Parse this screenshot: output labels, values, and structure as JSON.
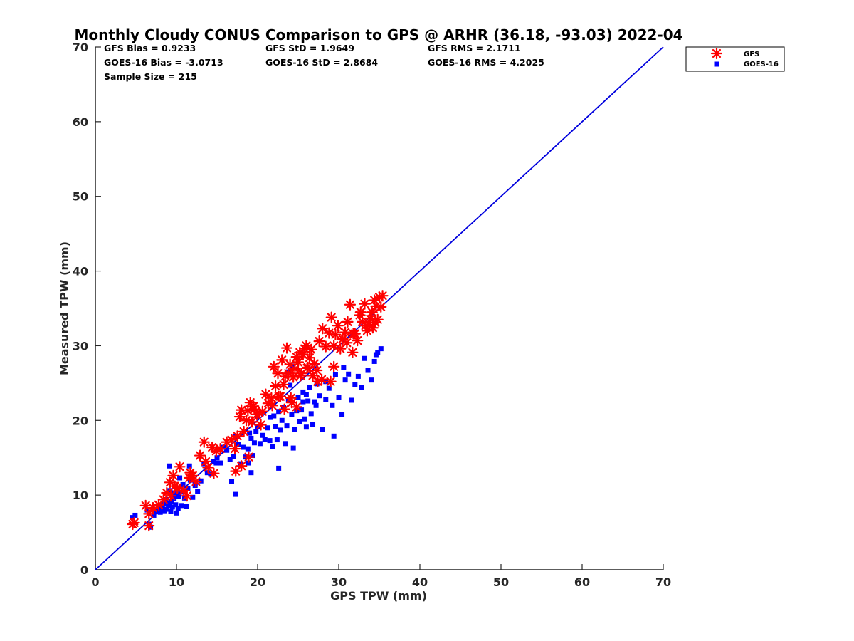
{
  "chart_data": {
    "type": "scatter",
    "title": "Monthly Cloudy CONUS Comparison to GPS @ ARHR (36.18, -93.03) 2022-04",
    "xlabel": "GPS TPW (mm)",
    "ylabel": "Measured TPW (mm)",
    "xlim": [
      0,
      70
    ],
    "ylim": [
      0,
      70
    ],
    "xticks": [
      "0",
      "10",
      "20",
      "30",
      "40",
      "50",
      "60",
      "70"
    ],
    "yticks": [
      "0",
      "10",
      "20",
      "30",
      "40",
      "50",
      "60",
      "70"
    ],
    "grid": false,
    "legend_position": "outside-top-right",
    "stats": [
      "GFS Bias = 0.9233",
      "GFS StD = 1.9649",
      "GFS RMS = 2.1711",
      "GOES-16 Bias = -3.0713",
      "GOES-16 StD = 2.8684",
      "GOES-16 RMS = 4.2025",
      "Sample Size = 215"
    ],
    "reference_line": {
      "x": [
        0,
        70
      ],
      "y": [
        0,
        70
      ],
      "color": "#0000dd"
    },
    "series": [
      {
        "name": "GFS",
        "marker": "asterisk",
        "color": "#ff0000",
        "x": [
          4.6,
          4.8,
          6.2,
          6.6,
          7.1,
          7.8,
          8.4,
          8.8,
          9.2,
          9.6,
          9.8,
          10.1,
          10.4,
          10.9,
          11.3,
          11.6,
          12.0,
          12.4,
          12.9,
          13.4,
          13.9,
          14.4,
          14.9,
          15.4,
          16.2,
          16.8,
          17.2,
          17.5,
          17.8,
          18.0,
          18.3,
          18.6,
          18.8,
          19.1,
          19.3,
          19.6,
          19.9,
          20.2,
          20.6,
          21.0,
          21.3,
          21.7,
          22.0,
          22.2,
          22.5,
          22.8,
          23.0,
          23.2,
          23.4,
          23.6,
          23.8,
          24.0,
          24.2,
          24.4,
          24.6,
          24.8,
          25.0,
          25.2,
          25.4,
          25.6,
          25.8,
          26.0,
          26.2,
          26.4,
          26.6,
          26.8,
          27.0,
          27.3,
          27.6,
          28.0,
          28.4,
          28.8,
          29.1,
          29.4,
          29.6,
          29.9,
          30.2,
          30.5,
          30.8,
          31.1,
          31.4,
          31.7,
          32.0,
          32.3,
          32.6,
          32.9,
          33.2,
          33.5,
          33.8,
          34.1,
          34.4,
          34.6,
          34.8,
          35.0,
          35.2,
          35.4,
          34.5,
          34.2,
          33.9,
          33.3,
          32.7,
          31.8,
          31.0,
          29.4,
          27.4,
          26.1,
          25.3,
          24.1,
          22.6,
          18.9,
          18.0,
          19.5,
          17.3,
          14.6,
          13.6,
          11.7,
          10.1,
          9.3,
          6.6,
          24.8,
          23.3,
          20.4,
          21.8,
          27.9,
          29.0
        ],
        "y": [
          6.1,
          6.3,
          8.6,
          5.9,
          8.3,
          8.7,
          9.4,
          10.3,
          11.7,
          12.6,
          11.2,
          10.9,
          13.8,
          10.6,
          9.9,
          12.3,
          12.6,
          11.8,
          15.3,
          17.1,
          13.7,
          16.4,
          15.9,
          16.2,
          17.1,
          17.4,
          16.2,
          17.9,
          20.5,
          21.4,
          18.5,
          20.0,
          21.3,
          22.4,
          19.8,
          21.5,
          20.8,
          21.0,
          21.2,
          23.5,
          22.3,
          23.0,
          27.2,
          24.6,
          26.3,
          23.2,
          28.1,
          24.8,
          25.9,
          29.7,
          26.3,
          27.5,
          22.4,
          25.8,
          26.9,
          28.5,
          27.8,
          29.1,
          26.3,
          28.8,
          29.6,
          30.0,
          27.1,
          28.4,
          29.5,
          26.0,
          27.6,
          26.7,
          30.6,
          32.3,
          29.9,
          31.7,
          33.8,
          30.0,
          31.5,
          32.7,
          29.6,
          30.9,
          31.8,
          33.2,
          35.5,
          29.1,
          31.6,
          30.7,
          34.1,
          33.2,
          35.6,
          32.0,
          32.8,
          34.5,
          36.1,
          35.3,
          33.5,
          36.5,
          35.2,
          36.7,
          33.1,
          32.4,
          33.6,
          32.7,
          34.5,
          31.6,
          30.4,
          27.2,
          25.2,
          27.0,
          26.0,
          23.0,
          23.2,
          15.1,
          13.9,
          21.9,
          13.2,
          12.9,
          14.5,
          13.0,
          11.0,
          9.9,
          7.5,
          21.8,
          21.5,
          19.4,
          22.0,
          25.5,
          25.2
        ]
      },
      {
        "name": "GOES-16",
        "marker": "square",
        "color": "#0000ff",
        "x": [
          4.6,
          4.9,
          6.4,
          6.8,
          7.2,
          7.5,
          7.8,
          8.0,
          8.2,
          8.4,
          8.5,
          8.7,
          8.8,
          9.0,
          9.1,
          9.2,
          9.3,
          9.4,
          9.5,
          9.6,
          9.7,
          9.8,
          9.9,
          10.0,
          10.1,
          10.2,
          10.3,
          10.4,
          10.5,
          10.6,
          10.8,
          11.0,
          11.2,
          11.4,
          11.7,
          12.0,
          12.3,
          12.6,
          13.0,
          13.4,
          13.8,
          14.2,
          14.6,
          15.0,
          15.4,
          15.8,
          16.2,
          16.6,
          17.0,
          17.3,
          17.6,
          17.9,
          18.2,
          18.5,
          18.8,
          19.0,
          19.2,
          19.4,
          19.6,
          19.8,
          20.0,
          20.3,
          20.6,
          20.9,
          21.2,
          21.5,
          21.8,
          22.0,
          22.2,
          22.4,
          22.6,
          22.8,
          23.0,
          23.2,
          23.4,
          23.6,
          23.8,
          24.0,
          24.2,
          24.4,
          24.6,
          24.8,
          25.0,
          25.2,
          25.4,
          25.6,
          25.8,
          26.0,
          26.2,
          26.4,
          26.6,
          26.8,
          27.0,
          27.3,
          27.6,
          28.0,
          28.4,
          28.8,
          29.2,
          29.6,
          30.0,
          30.4,
          30.8,
          31.2,
          31.6,
          32.0,
          32.4,
          32.8,
          33.2,
          33.6,
          34.0,
          34.4,
          34.8,
          35.2,
          29.4,
          24.2,
          22.6,
          18.9,
          17.3,
          16.8,
          19.2,
          23.8,
          25.6,
          27.2,
          20.0,
          26.0,
          30.6,
          21.6,
          28.4,
          34.6,
          9.1,
          6.6,
          10.9,
          14.9,
          12.3,
          11.6
        ],
        "y": [
          7.0,
          7.3,
          8.0,
          5.7,
          7.3,
          7.8,
          8.3,
          7.7,
          8.5,
          8.9,
          7.9,
          9.4,
          8.1,
          8.6,
          13.9,
          10.6,
          7.8,
          9.1,
          8.4,
          10.3,
          9.5,
          11.2,
          8.7,
          7.6,
          10.0,
          8.2,
          9.8,
          12.3,
          10.4,
          8.6,
          11.4,
          9.6,
          8.5,
          10.9,
          12.0,
          9.7,
          11.3,
          10.5,
          11.9,
          14.2,
          13.0,
          12.8,
          14.5,
          15.0,
          14.3,
          16.4,
          16.0,
          14.8,
          15.2,
          17.8,
          16.8,
          14.2,
          16.4,
          15.1,
          16.2,
          18.3,
          17.6,
          15.3,
          17.0,
          18.5,
          19.2,
          16.9,
          18.0,
          17.5,
          19.0,
          17.3,
          16.5,
          20.6,
          19.2,
          17.4,
          21.2,
          18.7,
          20.0,
          21.7,
          16.9,
          19.3,
          22.7,
          24.7,
          20.8,
          16.3,
          18.8,
          21.3,
          23.1,
          19.8,
          21.4,
          23.8,
          20.2,
          19.1,
          22.6,
          24.4,
          20.9,
          19.5,
          22.5,
          24.9,
          23.3,
          18.8,
          25.2,
          24.3,
          22.0,
          26.1,
          23.1,
          20.8,
          25.4,
          26.2,
          22.7,
          24.8,
          25.9,
          24.4,
          28.3,
          26.7,
          25.4,
          27.9,
          29.1,
          29.6,
          17.9,
          27.3,
          13.6,
          14.3,
          10.1,
          11.8,
          13.0,
          26.5,
          22.5,
          22.0,
          20.5,
          23.5,
          27.1,
          20.4,
          22.8,
          28.8,
          8.9,
          6.1,
          10.4,
          14.3,
          11.6,
          13.9
        ]
      }
    ]
  }
}
